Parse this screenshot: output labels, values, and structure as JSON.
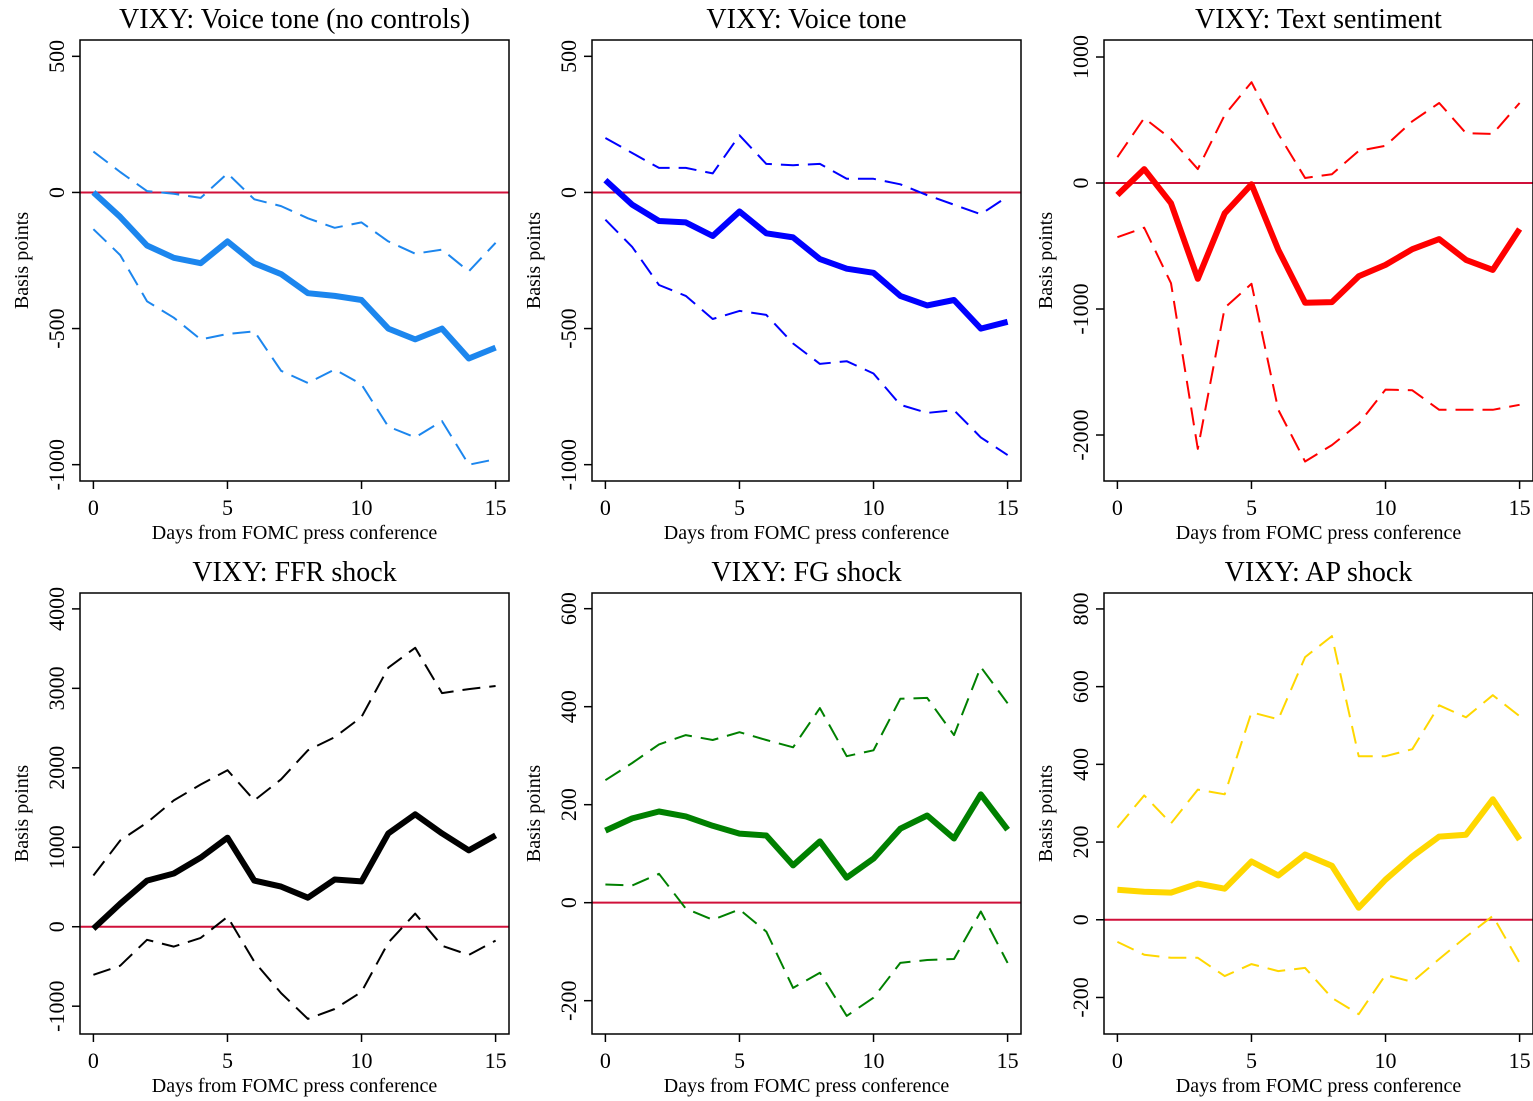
{
  "chart_data": [
    {
      "type": "line",
      "title": "VIXY: Voice tone (no controls)",
      "xlabel": "Days from FOMC press conference",
      "ylabel": "Basis points",
      "x": [
        0,
        1,
        2,
        3,
        4,
        5,
        6,
        7,
        8,
        9,
        10,
        11,
        12,
        13,
        14,
        15
      ],
      "xlim": [
        -0.5,
        15.5
      ],
      "xticks": [
        0,
        5,
        10,
        15
      ],
      "ylim": [
        -1060,
        560
      ],
      "yticks": [
        -1000,
        -500,
        0,
        500
      ],
      "hline": 0,
      "hline_color": "#d0103a",
      "series": [
        {
          "color": "#1c86ee",
          "dashed": false,
          "values": [
            0,
            -90,
            -195,
            -240,
            -260,
            -180,
            -260,
            -300,
            -370,
            -380,
            -395,
            -500,
            -540,
            -500,
            -610,
            -570
          ]
        },
        {
          "color": "#1c86ee",
          "dashed": true,
          "values": [
            150,
            75,
            5,
            -5,
            -20,
            70,
            -25,
            -50,
            -95,
            -130,
            -110,
            -180,
            -225,
            -210,
            -290,
            -185
          ]
        },
        {
          "color": "#1c86ee",
          "dashed": true,
          "values": [
            -135,
            -230,
            -400,
            -460,
            -540,
            -520,
            -510,
            -655,
            -700,
            -650,
            -705,
            -860,
            -900,
            -840,
            -1000,
            -980
          ]
        }
      ]
    },
    {
      "type": "line",
      "title": "VIXY: Voice tone",
      "xlabel": "Days from FOMC press conference",
      "ylabel": "Basis points",
      "x": [
        0,
        1,
        2,
        3,
        4,
        5,
        6,
        7,
        8,
        9,
        10,
        11,
        12,
        13,
        14,
        15
      ],
      "xlim": [
        -0.5,
        15.5
      ],
      "xticks": [
        0,
        5,
        10,
        15
      ],
      "ylim": [
        -1060,
        560
      ],
      "yticks": [
        -1000,
        -500,
        0,
        500
      ],
      "hline": 0,
      "hline_color": "#d0103a",
      "series": [
        {
          "color": "#0000ff",
          "dashed": false,
          "values": [
            45,
            -45,
            -105,
            -110,
            -160,
            -70,
            -150,
            -165,
            -245,
            -280,
            -295,
            -380,
            -415,
            -395,
            -500,
            -475
          ]
        },
        {
          "color": "#0000ff",
          "dashed": true,
          "values": [
            200,
            145,
            90,
            90,
            70,
            210,
            105,
            100,
            105,
            50,
            50,
            30,
            -10,
            -45,
            -80,
            -15
          ]
        },
        {
          "color": "#0000ff",
          "dashed": true,
          "values": [
            -100,
            -200,
            -340,
            -380,
            -465,
            -435,
            -450,
            -555,
            -630,
            -620,
            -665,
            -780,
            -810,
            -800,
            -900,
            -965
          ]
        }
      ]
    },
    {
      "type": "line",
      "title": "VIXY: Text sentiment",
      "xlabel": "Days from FOMC press conference",
      "ylabel": "Basis points",
      "x": [
        0,
        1,
        2,
        3,
        4,
        5,
        6,
        7,
        8,
        9,
        10,
        11,
        12,
        13,
        14,
        15
      ],
      "xlim": [
        -0.5,
        15.5
      ],
      "xticks": [
        0,
        5,
        10,
        15
      ],
      "ylim": [
        -2365,
        1135
      ],
      "yticks": [
        -2000,
        -1000,
        0,
        1000
      ],
      "hline": 0,
      "hline_color": "#d0103a",
      "series": [
        {
          "color": "#ff0000",
          "dashed": false,
          "values": [
            -95,
            110,
            -160,
            -760,
            -240,
            -10,
            -530,
            -950,
            -945,
            -740,
            -650,
            -525,
            -445,
            -610,
            -690,
            -365
          ]
        },
        {
          "color": "#ff0000",
          "dashed": true,
          "values": [
            205,
            515,
            350,
            110,
            540,
            800,
            390,
            40,
            70,
            255,
            295,
            490,
            635,
            395,
            390,
            635
          ]
        },
        {
          "color": "#ff0000",
          "dashed": true,
          "values": [
            -430,
            -355,
            -795,
            -2110,
            -990,
            -800,
            -1800,
            -2210,
            -2080,
            -1910,
            -1640,
            -1645,
            -1800,
            -1800,
            -1800,
            -1760
          ]
        }
      ]
    },
    {
      "type": "line",
      "title": "VIXY: FFR shock",
      "xlabel": "Days from FOMC press conference",
      "ylabel": "Basis points",
      "x": [
        0,
        1,
        2,
        3,
        4,
        5,
        6,
        7,
        8,
        9,
        10,
        11,
        12,
        13,
        14,
        15
      ],
      "xlim": [
        -0.5,
        15.5
      ],
      "xticks": [
        0,
        5,
        10,
        15
      ],
      "ylim": [
        -1350,
        4200
      ],
      "yticks": [
        -1000,
        0,
        1000,
        2000,
        3000,
        4000
      ],
      "hline": 0,
      "hline_color": "#d0103a",
      "series": [
        {
          "color": "#000000",
          "dashed": false,
          "values": [
            -25,
            290,
            580,
            670,
            870,
            1120,
            580,
            505,
            365,
            595,
            570,
            1175,
            1415,
            1175,
            960,
            1150
          ]
        },
        {
          "color": "#000000",
          "dashed": true,
          "values": [
            645,
            1085,
            1310,
            1590,
            1790,
            1970,
            1590,
            1855,
            2220,
            2385,
            2640,
            3260,
            3510,
            2940,
            2990,
            3030
          ]
        },
        {
          "color": "#000000",
          "dashed": true,
          "values": [
            -605,
            -490,
            -165,
            -250,
            -140,
            125,
            -440,
            -835,
            -1160,
            -1035,
            -820,
            -200,
            165,
            -240,
            -355,
            -175
          ]
        }
      ]
    },
    {
      "type": "line",
      "title": "VIXY: FG shock",
      "xlabel": "Days from FOMC press conference",
      "ylabel": "Basis points",
      "x": [
        0,
        1,
        2,
        3,
        4,
        5,
        6,
        7,
        8,
        9,
        10,
        11,
        12,
        13,
        14,
        15
      ],
      "xlim": [
        -0.5,
        15.5
      ],
      "xticks": [
        0,
        5,
        10,
        15
      ],
      "ylim": [
        -268,
        632
      ],
      "yticks": [
        -200,
        0,
        200,
        400,
        600
      ],
      "hline": 0,
      "hline_color": "#d0103a",
      "series": [
        {
          "color": "#008000",
          "dashed": false,
          "values": [
            147,
            172,
            186,
            176,
            157,
            141,
            137,
            76,
            125,
            51,
            90,
            151,
            178,
            131,
            221,
            149
          ]
        },
        {
          "color": "#008000",
          "dashed": true,
          "values": [
            250,
            285,
            323,
            342,
            332,
            348,
            332,
            317,
            397,
            299,
            311,
            416,
            418,
            342,
            481,
            407
          ]
        },
        {
          "color": "#008000",
          "dashed": true,
          "values": [
            37,
            35,
            59,
            -12,
            -35,
            -14,
            -59,
            -174,
            -143,
            -231,
            -194,
            -123,
            -117,
            -115,
            -18,
            -123
          ]
        }
      ]
    },
    {
      "type": "line",
      "title": "VIXY: AP shock",
      "xlabel": "Days from FOMC press conference",
      "ylabel": "Basis points",
      "x": [
        0,
        1,
        2,
        3,
        4,
        5,
        6,
        7,
        8,
        9,
        10,
        11,
        12,
        13,
        14,
        15
      ],
      "xlim": [
        -0.5,
        15.5
      ],
      "xticks": [
        0,
        5,
        10,
        15
      ],
      "ylim": [
        -294,
        841
      ],
      "yticks": [
        -200,
        0,
        200,
        400,
        600,
        800
      ],
      "hline": 0,
      "hline_color": "#d0103a",
      "series": [
        {
          "color": "#ffd700",
          "dashed": false,
          "values": [
            77,
            72,
            70,
            93,
            80,
            150,
            114,
            168,
            139,
            31,
            103,
            163,
            214,
            219,
            310,
            206
          ]
        },
        {
          "color": "#ffd700",
          "dashed": true,
          "values": [
            237,
            320,
            248,
            335,
            323,
            534,
            516,
            676,
            730,
            421,
            421,
            439,
            552,
            521,
            578,
            524
          ]
        },
        {
          "color": "#ffd700",
          "dashed": true,
          "values": [
            -57,
            -90,
            -98,
            -98,
            -145,
            -114,
            -132,
            -124,
            -201,
            -243,
            -142,
            -160,
            -101,
            -44,
            10,
            -111
          ]
        }
      ]
    }
  ]
}
